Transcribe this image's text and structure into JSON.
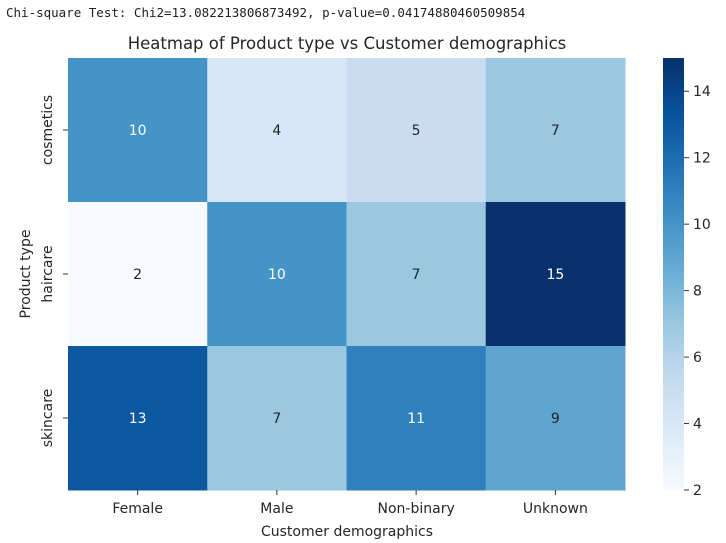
{
  "header": {
    "stat_line": "Chi-square Test: Chi2=13.082213806873492, p-value=0.04174880460509854"
  },
  "chart_data": {
    "type": "heatmap",
    "title": "Heatmap of Product type vs Customer demographics",
    "xlabel": "Customer demographics",
    "ylabel": "Product type",
    "x_categories": [
      "Female",
      "Male",
      "Non-binary",
      "Unknown"
    ],
    "y_categories": [
      "cosmetics",
      "haircare",
      "skincare"
    ],
    "values": [
      [
        10,
        4,
        5,
        7
      ],
      [
        2,
        10,
        7,
        15
      ],
      [
        13,
        7,
        11,
        9
      ]
    ],
    "colormap": "Blues",
    "vmin": 2,
    "vmax": 15,
    "colorbar_ticks": [
      2,
      4,
      6,
      8,
      10,
      12,
      14
    ],
    "colorbar_tick_labels": [
      "2",
      "4",
      "6",
      "8",
      "10",
      "12",
      "14"
    ],
    "colors": {
      "low": "#f7fbff",
      "high": "#08306b",
      "text_dark": "#262626",
      "text_light": "#ffffff"
    }
  }
}
